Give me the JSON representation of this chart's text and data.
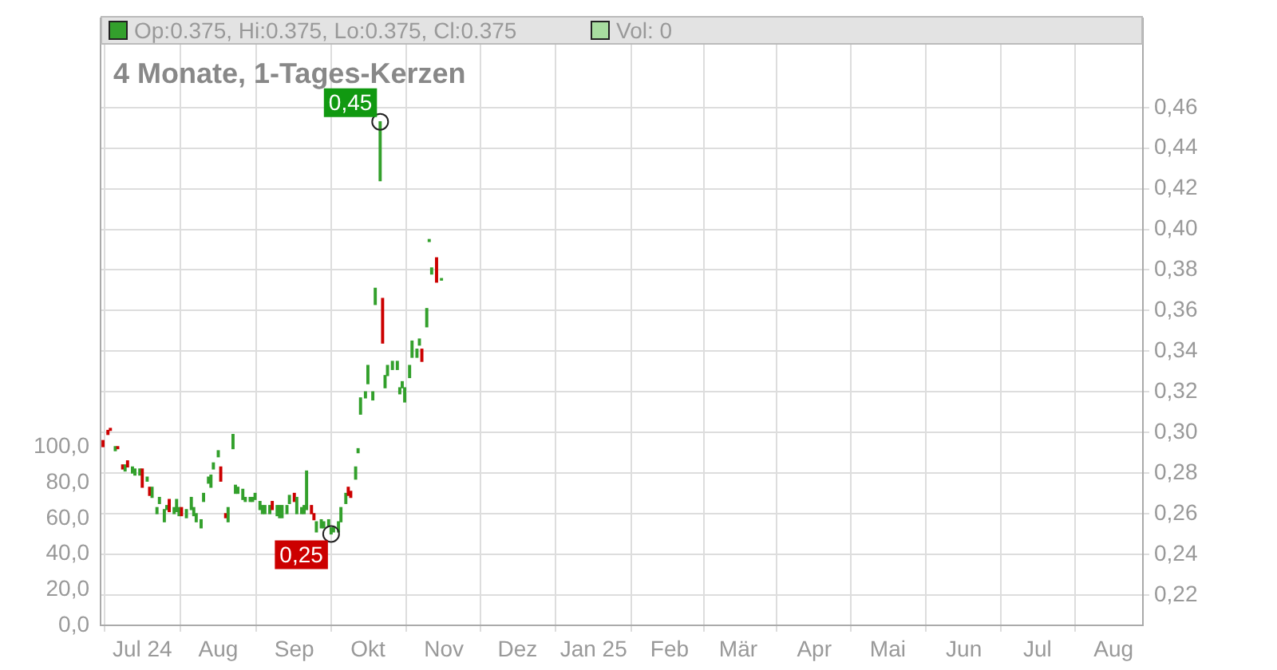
{
  "chart_data": {
    "type": "candlestick",
    "title": "4 Monate, 1-Tages-Kerzen",
    "annotations": [
      "Op:0.375, Hi:0.375, Lo:0.375, Cl:0.375",
      "Vol: 0",
      {
        "text": "0,45",
        "x": "2024-10-06",
        "y": 0.453
      },
      {
        "text": "0,25",
        "x": "2024-09-16",
        "y": 0.25
      }
    ],
    "x": [
      "2024-06-15",
      "2024-06-17",
      "2024-06-18",
      "2024-06-20",
      "2024-06-21",
      "2024-06-23",
      "2024-06-24",
      "2024-06-25",
      "2024-06-27",
      "2024-06-28",
      "2024-06-30",
      "2024-07-01",
      "2024-07-03",
      "2024-07-04",
      "2024-07-05",
      "2024-07-07",
      "2024-07-08",
      "2024-07-10",
      "2024-07-11",
      "2024-07-12",
      "2024-07-14",
      "2024-07-15",
      "2024-07-16",
      "2024-07-17",
      "2024-07-19",
      "2024-07-21",
      "2024-07-22",
      "2024-07-23",
      "2024-07-25",
      "2024-07-26",
      "2024-07-28",
      "2024-07-29",
      "2024-07-30",
      "2024-08-01",
      "2024-08-02",
      "2024-08-04",
      "2024-08-05",
      "2024-08-07",
      "2024-08-08",
      "2024-08-09",
      "2024-08-11",
      "2024-08-12",
      "2024-08-14",
      "2024-08-15",
      "2024-08-16",
      "2024-08-18",
      "2024-08-19",
      "2024-08-20",
      "2024-08-22",
      "2024-08-23",
      "2024-08-25",
      "2024-08-26",
      "2024-08-27",
      "2024-08-29",
      "2024-08-30",
      "2024-09-01",
      "2024-09-02",
      "2024-09-04",
      "2024-09-05",
      "2024-09-06",
      "2024-09-08",
      "2024-09-09",
      "2024-09-10",
      "2024-09-12",
      "2024-09-13",
      "2024-09-15",
      "2024-09-16",
      "2024-09-17",
      "2024-09-19",
      "2024-09-20",
      "2024-09-22",
      "2024-09-23",
      "2024-09-24",
      "2024-09-26",
      "2024-09-27",
      "2024-09-28",
      "2024-09-30",
      "2024-10-01",
      "2024-10-03",
      "2024-10-04",
      "2024-10-06",
      "2024-10-07",
      "2024-10-08",
      "2024-10-09",
      "2024-10-11",
      "2024-10-13",
      "2024-10-14",
      "2024-10-15",
      "2024-10-16",
      "2024-10-18",
      "2024-10-19",
      "2024-10-21",
      "2024-10-22",
      "2024-10-23",
      "2024-10-25",
      "2024-10-26",
      "2024-10-27",
      "2024-10-29",
      "2024-10-31"
    ],
    "ohlc": [
      [
        0.296,
        0.296,
        0.293,
        0.293
      ],
      [
        0.301,
        0.301,
        0.299,
        0.299
      ],
      [
        0.302,
        0.302,
        0.301,
        0.301
      ],
      [
        0.291,
        0.293,
        0.291,
        0.293
      ],
      [
        0.293,
        0.293,
        0.292,
        0.292
      ],
      [
        0.284,
        0.284,
        0.282,
        0.282
      ],
      [
        0.281,
        0.284,
        0.281,
        0.284
      ],
      [
        0.286,
        0.286,
        0.283,
        0.283
      ],
      [
        0.28,
        0.283,
        0.28,
        0.283
      ],
      [
        0.279,
        0.282,
        0.279,
        0.282
      ],
      [
        0.279,
        0.282,
        0.279,
        0.282
      ],
      [
        0.282,
        0.282,
        0.273,
        0.273
      ],
      [
        0.276,
        0.278,
        0.276,
        0.278
      ],
      [
        0.273,
        0.273,
        0.269,
        0.269
      ],
      [
        0.268,
        0.273,
        0.268,
        0.273
      ],
      [
        0.26,
        0.263,
        0.26,
        0.263
      ],
      [
        0.265,
        0.268,
        0.265,
        0.268
      ],
      [
        0.256,
        0.262,
        0.256,
        0.262
      ],
      [
        0.262,
        0.264,
        0.262,
        0.264
      ],
      [
        0.267,
        0.267,
        0.261,
        0.261
      ],
      [
        0.26,
        0.263,
        0.26,
        0.263
      ],
      [
        0.261,
        0.267,
        0.261,
        0.267
      ],
      [
        0.259,
        0.263,
        0.259,
        0.263
      ],
      [
        0.263,
        0.263,
        0.259,
        0.259
      ],
      [
        0.258,
        0.262,
        0.258,
        0.262
      ],
      [
        0.262,
        0.268,
        0.262,
        0.268
      ],
      [
        0.259,
        0.263,
        0.259,
        0.263
      ],
      [
        0.256,
        0.26,
        0.256,
        0.26
      ],
      [
        0.253,
        0.257,
        0.253,
        0.257
      ],
      [
        0.266,
        0.27,
        0.266,
        0.27
      ],
      [
        0.275,
        0.278,
        0.275,
        0.278
      ],
      [
        0.273,
        0.279,
        0.273,
        0.279
      ],
      [
        0.282,
        0.285,
        0.282,
        0.285
      ],
      [
        0.288,
        0.291,
        0.288,
        0.291
      ],
      [
        0.283,
        0.283,
        0.276,
        0.276
      ],
      [
        0.26,
        0.26,
        0.258,
        0.258
      ],
      [
        0.256,
        0.263,
        0.256,
        0.263
      ],
      [
        0.292,
        0.299,
        0.292,
        0.299
      ],
      [
        0.27,
        0.274,
        0.27,
        0.274
      ],
      [
        0.27,
        0.273,
        0.27,
        0.273
      ],
      [
        0.267,
        0.272,
        0.267,
        0.272
      ],
      [
        0.266,
        0.268,
        0.266,
        0.268
      ],
      [
        0.266,
        0.268,
        0.266,
        0.268
      ],
      [
        0.266,
        0.268,
        0.266,
        0.268
      ],
      [
        0.267,
        0.27,
        0.267,
        0.27
      ],
      [
        0.262,
        0.266,
        0.262,
        0.266
      ],
      [
        0.26,
        0.264,
        0.26,
        0.264
      ],
      [
        0.26,
        0.264,
        0.26,
        0.264
      ],
      [
        0.26,
        0.264,
        0.26,
        0.264
      ],
      [
        0.266,
        0.266,
        0.262,
        0.262
      ],
      [
        0.259,
        0.264,
        0.259,
        0.264
      ],
      [
        0.258,
        0.264,
        0.258,
        0.264
      ],
      [
        0.258,
        0.264,
        0.258,
        0.264
      ],
      [
        0.26,
        0.264,
        0.26,
        0.264
      ],
      [
        0.265,
        0.269,
        0.265,
        0.269
      ],
      [
        0.27,
        0.27,
        0.266,
        0.266
      ],
      [
        0.26,
        0.268,
        0.26,
        0.268
      ],
      [
        0.26,
        0.263,
        0.26,
        0.263
      ],
      [
        0.26,
        0.264,
        0.26,
        0.264
      ],
      [
        0.262,
        0.281,
        0.262,
        0.281
      ],
      [
        0.264,
        0.264,
        0.26,
        0.26
      ],
      [
        0.26,
        0.26,
        0.257,
        0.257
      ],
      [
        0.251,
        0.256,
        0.251,
        0.256
      ],
      [
        0.253,
        0.257,
        0.253,
        0.257
      ],
      [
        0.253,
        0.256,
        0.253,
        0.256
      ],
      [
        0.254,
        0.257,
        0.254,
        0.257
      ],
      [
        0.25,
        0.253,
        0.25,
        0.253
      ],
      [
        0.251,
        0.253,
        0.251,
        0.253
      ],
      [
        0.251,
        0.256,
        0.251,
        0.256
      ],
      [
        0.256,
        0.263,
        0.256,
        0.263
      ],
      [
        0.265,
        0.27,
        0.265,
        0.27
      ],
      [
        0.273,
        0.273,
        0.269,
        0.269
      ],
      [
        0.271,
        0.271,
        0.268,
        0.268
      ],
      [
        0.277,
        0.283,
        0.277,
        0.283
      ],
      [
        0.29,
        0.292,
        0.29,
        0.292
      ],
      [
        0.309,
        0.317,
        0.309,
        0.317
      ],
      [
        0.317,
        0.32,
        0.317,
        0.32
      ],
      [
        0.324,
        0.333,
        0.324,
        0.333
      ],
      [
        0.316,
        0.32,
        0.316,
        0.32
      ],
      [
        0.363,
        0.371,
        0.363,
        0.371
      ],
      [
        0.424,
        0.453,
        0.424,
        0.453
      ],
      [
        0.366,
        0.366,
        0.344,
        0.344
      ],
      [
        0.322,
        0.328,
        0.322,
        0.328
      ],
      [
        0.328,
        0.333,
        0.328,
        0.333
      ],
      [
        0.331,
        0.335,
        0.331,
        0.335
      ],
      [
        0.331,
        0.335,
        0.331,
        0.335
      ],
      [
        0.319,
        0.322,
        0.319,
        0.322
      ],
      [
        0.322,
        0.325,
        0.322,
        0.325
      ],
      [
        0.315,
        0.322,
        0.315,
        0.322
      ],
      [
        0.327,
        0.333,
        0.327,
        0.333
      ],
      [
        0.337,
        0.345,
        0.337,
        0.345
      ],
      [
        0.337,
        0.341,
        0.337,
        0.341
      ],
      [
        0.343,
        0.346,
        0.343,
        0.346
      ],
      [
        0.341,
        0.341,
        0.335,
        0.335
      ],
      [
        0.352,
        0.361,
        0.352,
        0.361
      ],
      [
        0.394,
        0.395,
        0.394,
        0.395
      ],
      [
        0.378,
        0.381,
        0.378,
        0.381
      ],
      [
        0.386,
        0.386,
        0.374,
        0.374
      ],
      [
        0.375,
        0.375,
        0.375,
        0.375
      ]
    ],
    "xlim": [
      "2024-06-14",
      "2025-08-13"
    ],
    "xticks": [
      {
        "value": "2024-07-01",
        "label": "Jul 24"
      },
      {
        "value": "2024-08-01",
        "label": "Aug"
      },
      {
        "value": "2024-09-01",
        "label": "Sep"
      },
      {
        "value": "2024-10-01",
        "label": "Okt"
      },
      {
        "value": "2024-11-01",
        "label": "Nov"
      },
      {
        "value": "2024-12-01",
        "label": "Dez"
      },
      {
        "value": "2025-01-01",
        "label": "Jan 25"
      },
      {
        "value": "2025-02-01",
        "label": "Feb"
      },
      {
        "value": "2025-03-01",
        "label": "Mär"
      },
      {
        "value": "2025-04-01",
        "label": "Apr"
      },
      {
        "value": "2025-05-01",
        "label": "Mai"
      },
      {
        "value": "2025-06-01",
        "label": "Jun"
      },
      {
        "value": "2025-07-01",
        "label": "Jul"
      },
      {
        "value": "2025-08-01",
        "label": "Aug"
      }
    ],
    "ylim": [
      0.205,
      0.504
    ],
    "yticks": [
      {
        "value": 0.22,
        "label": "0,22"
      },
      {
        "value": 0.24,
        "label": "0,24"
      },
      {
        "value": 0.26,
        "label": "0,26"
      },
      {
        "value": 0.28,
        "label": "0,28"
      },
      {
        "value": 0.3,
        "label": "0,30"
      },
      {
        "value": 0.32,
        "label": "0,32"
      },
      {
        "value": 0.34,
        "label": "0,34"
      },
      {
        "value": 0.36,
        "label": "0,36"
      },
      {
        "value": 0.38,
        "label": "0,38"
      },
      {
        "value": 0.4,
        "label": "0,40"
      },
      {
        "value": 0.42,
        "label": "0,42"
      },
      {
        "value": 0.44,
        "label": "0,44"
      },
      {
        "value": 0.46,
        "label": "0,46"
      }
    ],
    "y2lim": [
      0,
      341
    ],
    "y2ticks": [
      {
        "value": 0,
        "label": "0,0"
      },
      {
        "value": 20,
        "label": "20,0"
      },
      {
        "value": 40,
        "label": "40,0"
      },
      {
        "value": 60,
        "label": "60,0"
      },
      {
        "value": 80,
        "label": "80,0"
      },
      {
        "value": 100,
        "label": "100,0"
      }
    ],
    "grid": true
  }
}
